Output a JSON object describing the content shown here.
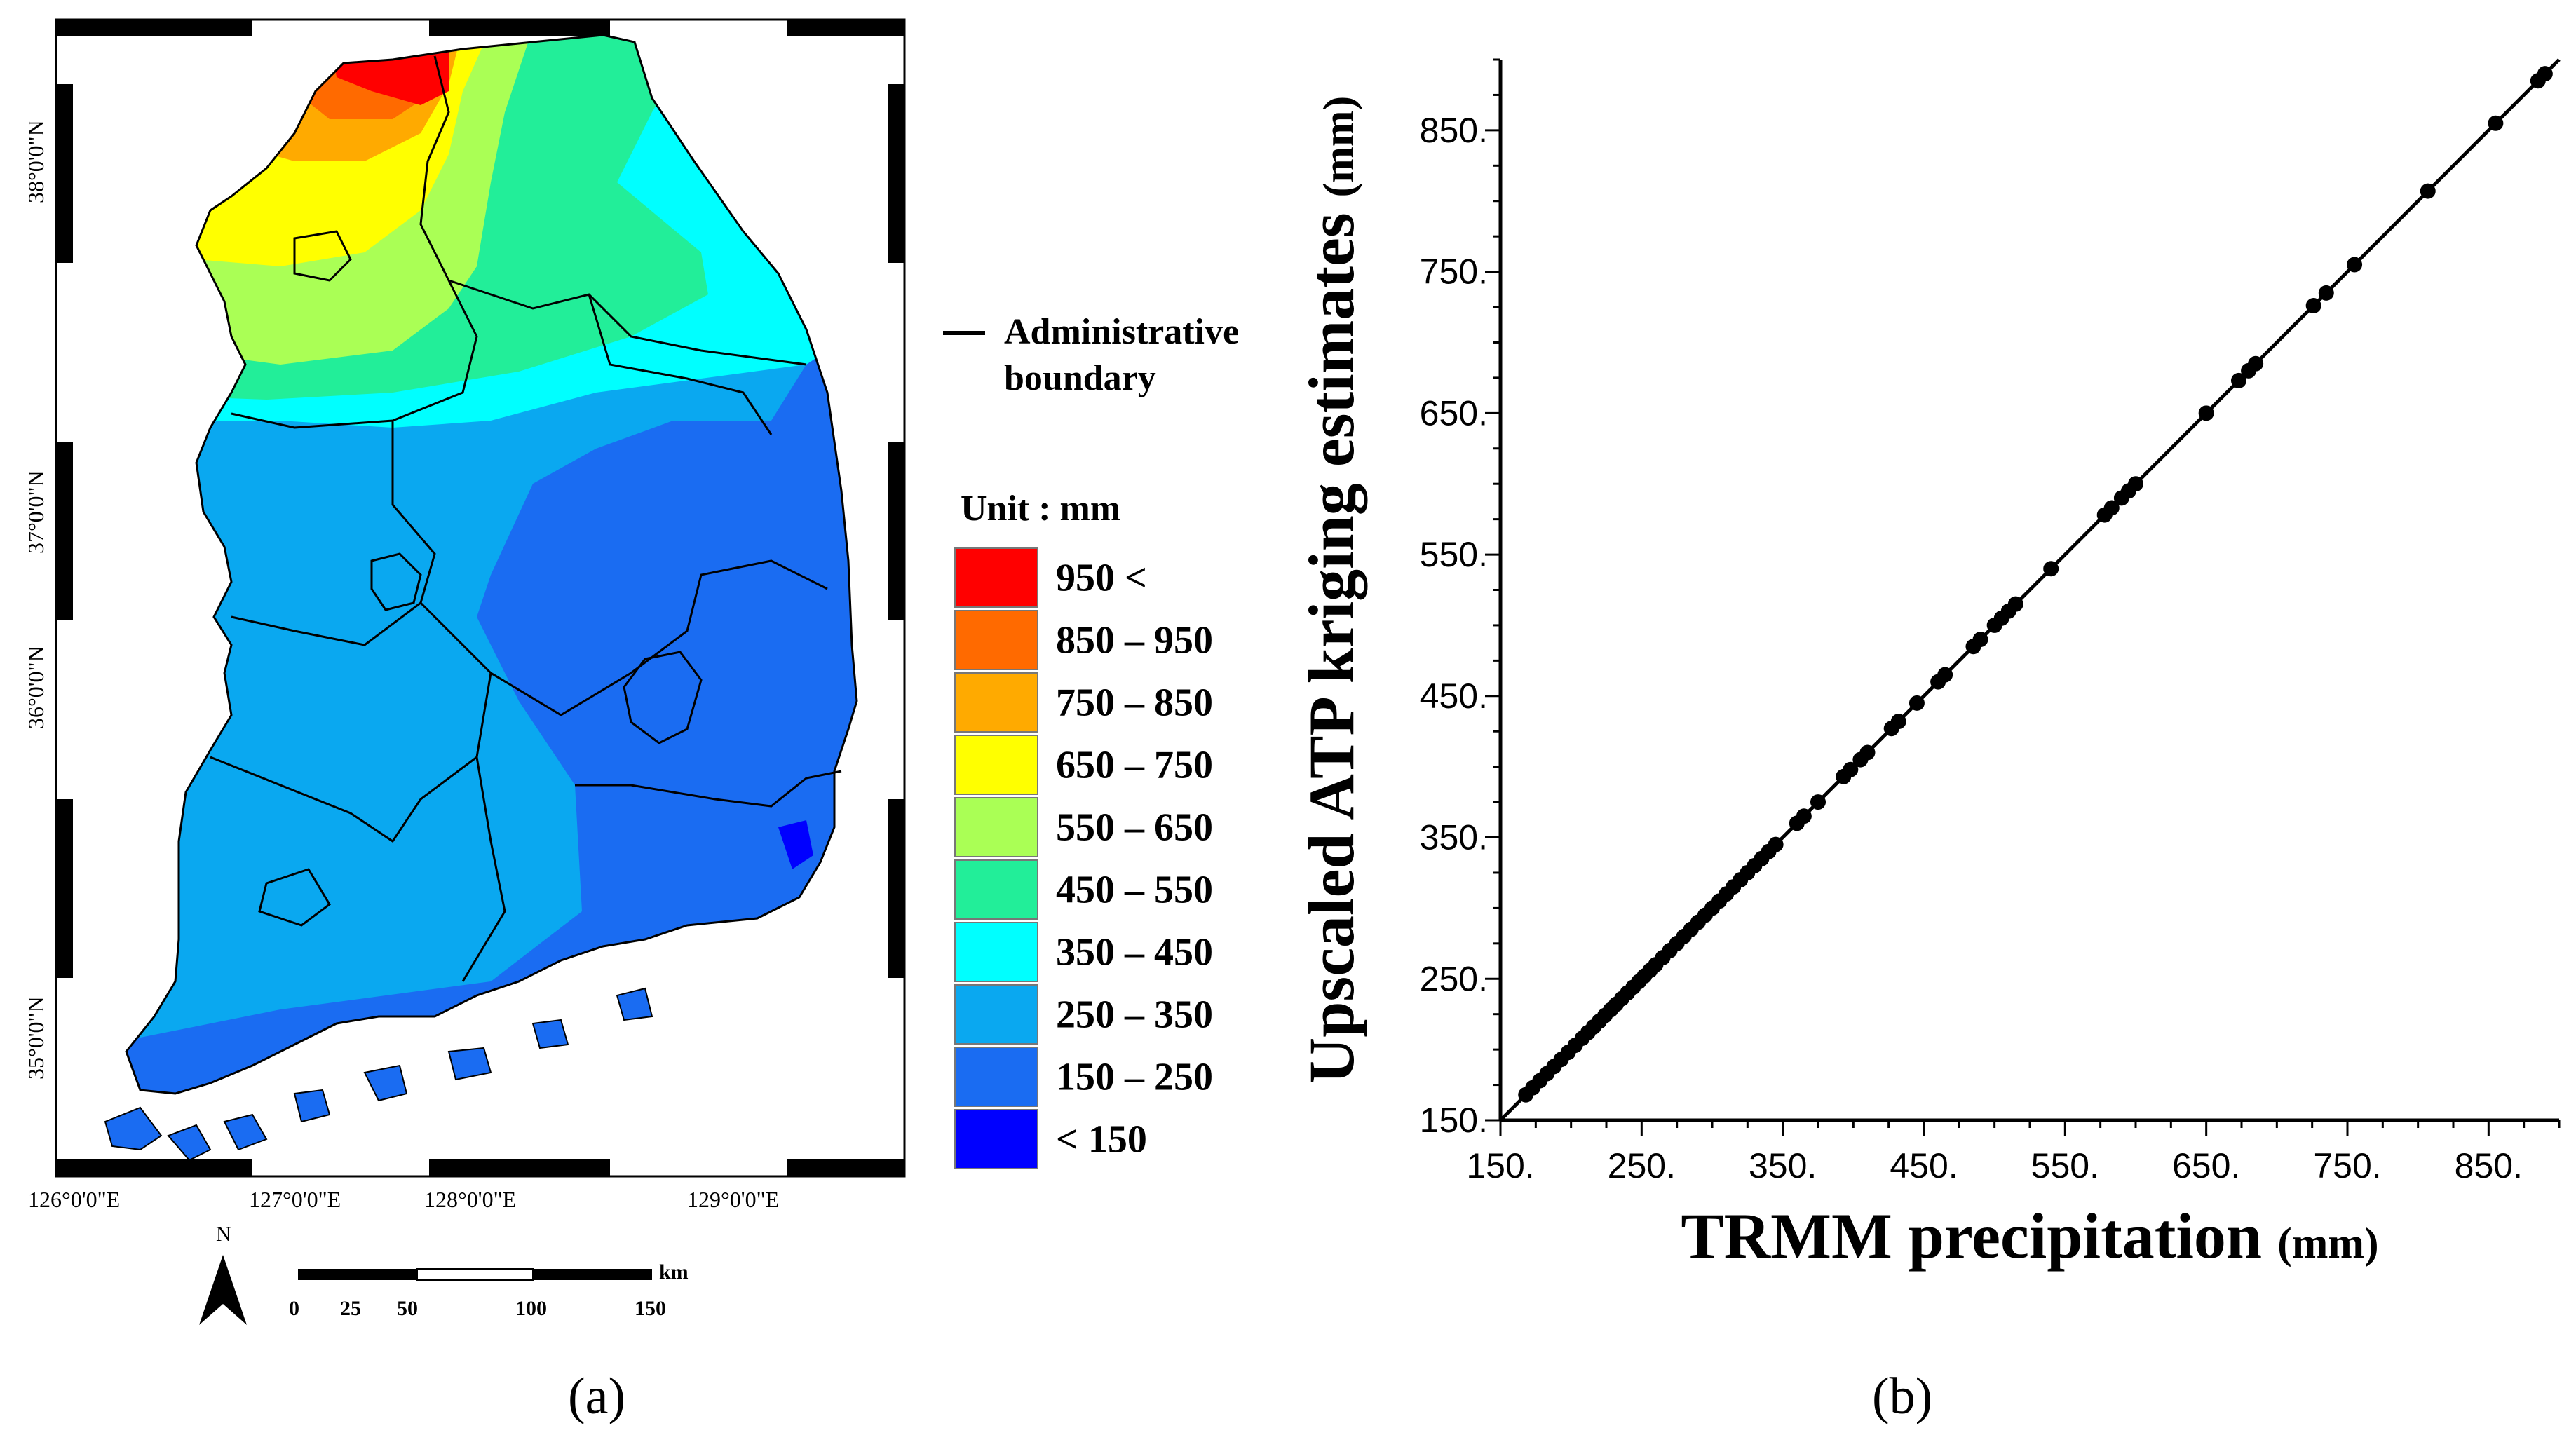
{
  "panel_a": {
    "caption": "(a)",
    "longitude_labels": [
      "126°0'0\"E",
      "127°0'0\"E",
      "128°0'0\"E",
      "129°0'0\"E"
    ],
    "latitude_labels": [
      "38°0'0\"N",
      "37°0'0\"N",
      "36°0'0\"N",
      "35°0'0\"N"
    ],
    "north_label": "N",
    "scale_bar": {
      "unit": "km",
      "labels": [
        "0",
        "25",
        "50",
        "100",
        "150"
      ]
    },
    "boundary_legend": {
      "line1": "Administrative",
      "line2": "boundary"
    },
    "legend": {
      "title": "Unit : mm",
      "classes": [
        {
          "label": "950  <",
          "color": "#ff0000"
        },
        {
          "label": "850 – 950",
          "color": "#ff6a00"
        },
        {
          "label": "750 – 850",
          "color": "#ffaa00"
        },
        {
          "label": "650 – 750",
          "color": "#ffff00"
        },
        {
          "label": "550 – 650",
          "color": "#aaff55"
        },
        {
          "label": "450 – 550",
          "color": "#22ee99"
        },
        {
          "label": "350 – 450",
          "color": "#00ffff"
        },
        {
          "label": "250 – 350",
          "color": "#0aa8f0"
        },
        {
          "label": "150 – 250",
          "color": "#1a6cf2"
        },
        {
          "label": "< 150",
          "color": "#0000ff"
        }
      ]
    }
  },
  "panel_b": {
    "caption": "(b)",
    "chart_data": {
      "type": "scatter",
      "title": "",
      "xlabel": "TRMM precipitation",
      "xlabel_unit": "(mm)",
      "ylabel": "Upscaled ATP kriging estimates",
      "ylabel_unit": "(mm)",
      "xlim": [
        150,
        900
      ],
      "ylim": [
        150,
        900
      ],
      "xticks": [
        "150.",
        "250.",
        "350.",
        "450.",
        "550.",
        "650.",
        "750.",
        "850."
      ],
      "yticks": [
        "150.",
        "250.",
        "350.",
        "450.",
        "550.",
        "650.",
        "750.",
        "850."
      ],
      "reference_line": "1:1",
      "points": [
        [
          168,
          168
        ],
        [
          173,
          173
        ],
        [
          178,
          178
        ],
        [
          183,
          183
        ],
        [
          188,
          188
        ],
        [
          193,
          193
        ],
        [
          198,
          198
        ],
        [
          203,
          203
        ],
        [
          208,
          208
        ],
        [
          212,
          212
        ],
        [
          216,
          216
        ],
        [
          220,
          220
        ],
        [
          224,
          224
        ],
        [
          228,
          228
        ],
        [
          232,
          232
        ],
        [
          236,
          236
        ],
        [
          240,
          240
        ],
        [
          244,
          244
        ],
        [
          248,
          248
        ],
        [
          252,
          252
        ],
        [
          256,
          256
        ],
        [
          260,
          260
        ],
        [
          265,
          265
        ],
        [
          270,
          270
        ],
        [
          275,
          275
        ],
        [
          280,
          280
        ],
        [
          285,
          285
        ],
        [
          290,
          290
        ],
        [
          295,
          295
        ],
        [
          300,
          300
        ],
        [
          305,
          305
        ],
        [
          310,
          310
        ],
        [
          315,
          315
        ],
        [
          320,
          320
        ],
        [
          325,
          325
        ],
        [
          330,
          330
        ],
        [
          335,
          335
        ],
        [
          340,
          340
        ],
        [
          345,
          345
        ],
        [
          360,
          360
        ],
        [
          365,
          365
        ],
        [
          375,
          375
        ],
        [
          393,
          393
        ],
        [
          398,
          398
        ],
        [
          405,
          405
        ],
        [
          410,
          410
        ],
        [
          427,
          427
        ],
        [
          432,
          432
        ],
        [
          445,
          445
        ],
        [
          460,
          460
        ],
        [
          465,
          465
        ],
        [
          485,
          485
        ],
        [
          490,
          490
        ],
        [
          500,
          500
        ],
        [
          505,
          505
        ],
        [
          510,
          510
        ],
        [
          515,
          515
        ],
        [
          540,
          540
        ],
        [
          578,
          578
        ],
        [
          583,
          583
        ],
        [
          590,
          590
        ],
        [
          595,
          595
        ],
        [
          600,
          600
        ],
        [
          650,
          650
        ],
        [
          673,
          673
        ],
        [
          680,
          680
        ],
        [
          685,
          685
        ],
        [
          726,
          726
        ],
        [
          735,
          735
        ],
        [
          755,
          755
        ],
        [
          807,
          807
        ],
        [
          855,
          855
        ],
        [
          885,
          885
        ],
        [
          890,
          890
        ]
      ]
    }
  }
}
